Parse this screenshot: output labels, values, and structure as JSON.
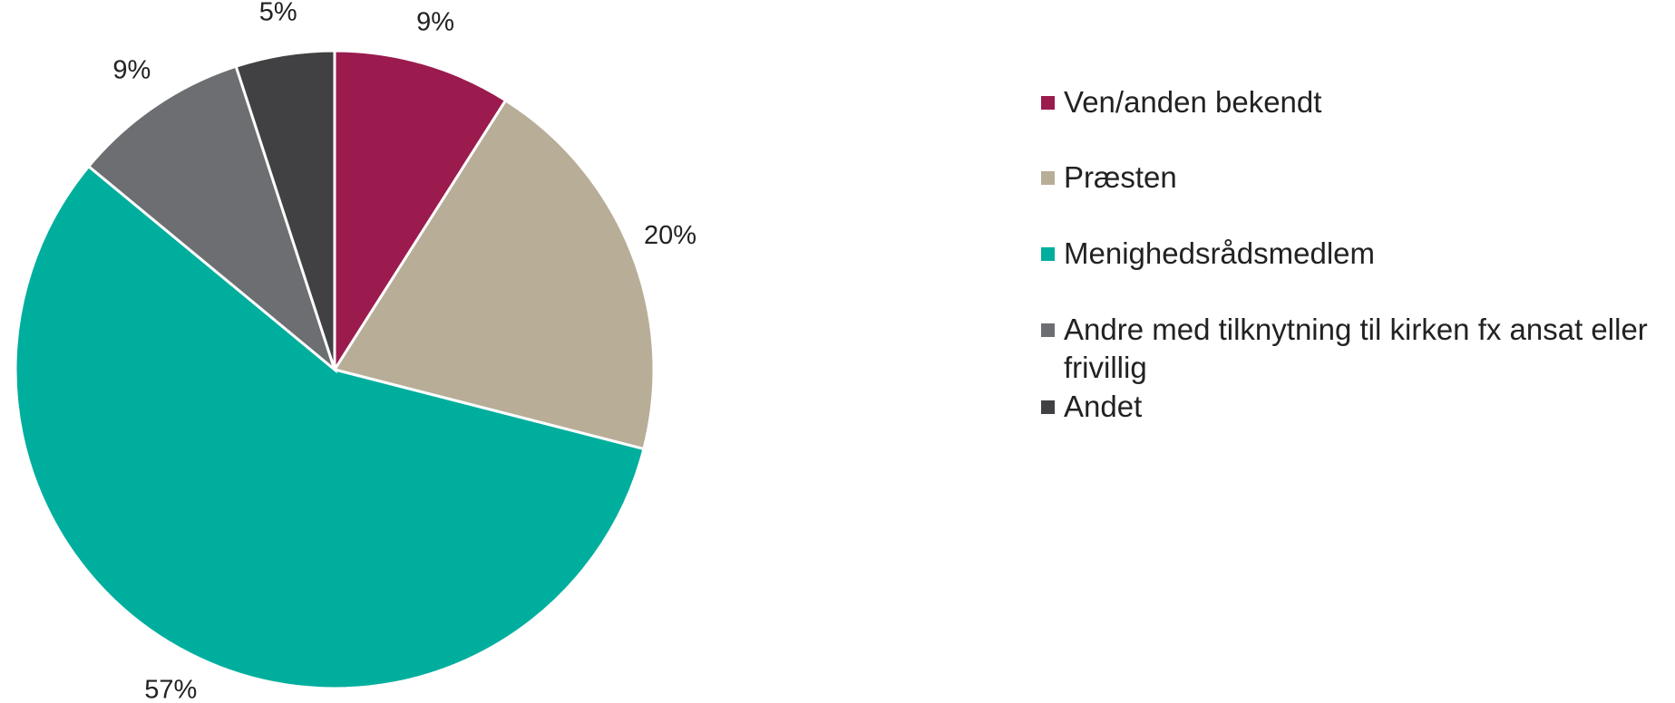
{
  "chart_data": {
    "type": "pie",
    "categories": [
      "Ven/anden bekendt",
      "Præsten",
      "Menighedsrådsmedlem",
      "Andre med tilknytning til kirken fx ansat eller frivillig",
      "Andet"
    ],
    "values": [
      9,
      20,
      57,
      9,
      5
    ],
    "value_labels": [
      "9%",
      "20%",
      "57%",
      "9%",
      "5%"
    ],
    "colors": [
      "#9b1b4f",
      "#b8ad97",
      "#00ae9e",
      "#6d6e71",
      "#414042"
    ]
  }
}
